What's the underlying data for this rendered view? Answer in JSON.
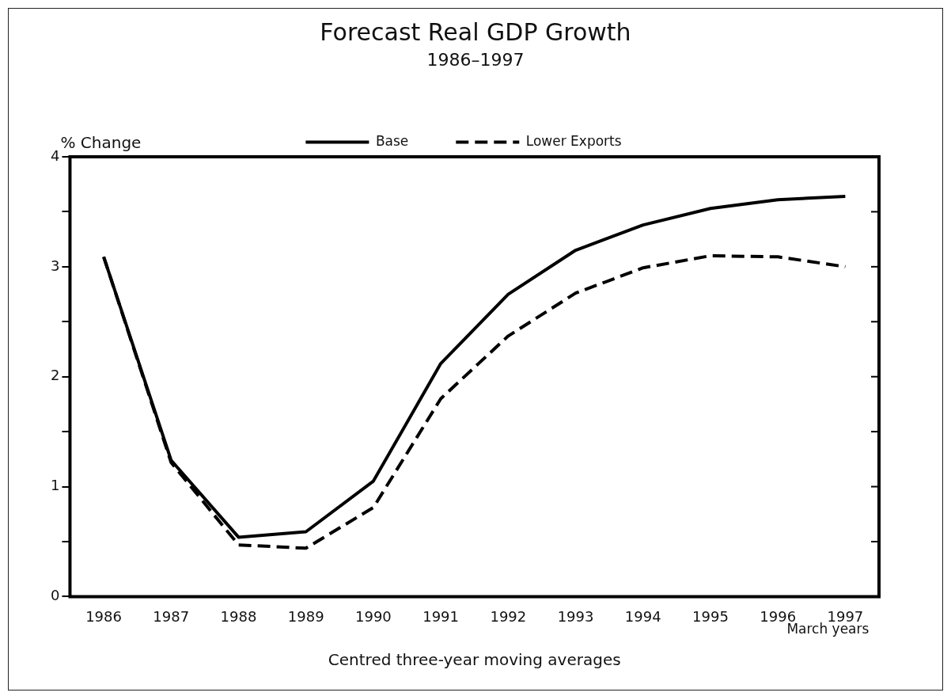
{
  "chart_data": {
    "type": "line",
    "title": "Forecast Real GDP Growth",
    "subtitle": "1986–1997",
    "ylabel": "% Change",
    "xlabel": "Centred three-year moving averages",
    "categories": [
      "1986",
      "1987",
      "1988",
      "1989",
      "1990",
      "1991",
      "1992",
      "1993",
      "1994",
      "1995",
      "1996",
      "1997"
    ],
    "series": [
      {
        "name": "Base",
        "color": "#000000",
        "line_style": "solid",
        "values": [
          3.09,
          1.24,
          0.54,
          0.59,
          1.05,
          2.12,
          2.75,
          3.15,
          3.38,
          3.53,
          3.61,
          3.64
        ]
      },
      {
        "name": "Lower Exports",
        "color": "#000000",
        "line_style": "dashed",
        "values": [
          3.09,
          1.22,
          0.47,
          0.44,
          0.81,
          1.8,
          2.37,
          2.76,
          2.99,
          3.1,
          3.09,
          3.0
        ]
      }
    ],
    "ylim": [
      0,
      4
    ],
    "yticks": [
      0,
      {
        "value": 0.5,
        "label": null
      },
      1,
      {
        "value": 1.5,
        "label": null
      },
      2,
      {
        "value": 2.5,
        "label": null
      },
      3,
      {
        "value": 3.5,
        "label": null
      },
      4
    ],
    "grid": false,
    "legend": "top",
    "marker": "none",
    "annotations": [
      "March years"
    ]
  }
}
